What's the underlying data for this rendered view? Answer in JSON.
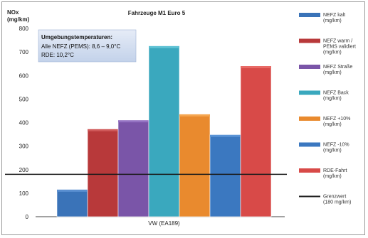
{
  "chart_data": {
    "type": "bar",
    "title": "Fahrzeuge M1 Euro 5",
    "ylabel_line1": "NOx",
    "ylabel_line2": "(mg/km)",
    "ylim": [
      0,
      800
    ],
    "yticks": [
      0,
      100,
      200,
      300,
      400,
      500,
      600,
      700,
      800
    ],
    "grid": false,
    "categories": [
      "VW (EA189)"
    ],
    "series": [
      {
        "name_line1": "NEFZ kalt",
        "name_line2": "(mg/km)",
        "value": 115,
        "color": "#3a73b8",
        "top": "#5a8fd0"
      },
      {
        "name_line1": "NEFZ warm / PEMS validiert",
        "name_line2": "(mg/km)",
        "value": 372,
        "color": "#b8393a",
        "top": "#d05a5a"
      },
      {
        "name_line1": "NEFZ Straße",
        "name_line2": "(mg/km)",
        "value": 410,
        "color": "#7a55a8",
        "top": "#9473c2"
      },
      {
        "name_line1": "NEFZ Back",
        "name_line2": "(mg/km)",
        "value": 725,
        "color": "#3aa8be",
        "top": "#5fc2d4"
      },
      {
        "name_line1": "NEFZ +10%",
        "name_line2": "(mg/km)",
        "value": 435,
        "color": "#e98a2e",
        "top": "#f5a650"
      },
      {
        "name_line1": "NEFZ -10%",
        "name_line2": "(mg/km)",
        "value": 348,
        "color": "#3b78c0",
        "top": "#5b94d6"
      },
      {
        "name_line1": "RDE-Fahrt",
        "name_line2": "(mg/km)",
        "value": 640,
        "color": "#d84a48",
        "top": "#e86a66"
      }
    ],
    "limit": {
      "value": 180,
      "color": "#1a1a1a",
      "name_line1": "Grenzwert",
      "name_line2": "(180 mg/km)"
    },
    "legend_placement": "right",
    "annotation": {
      "line1": "Umgebungstemperaturen:",
      "line2": "Alle NEFZ (PEMS): 8,6 – 9,0°C",
      "line3": "RDE: 10,2°C"
    }
  }
}
